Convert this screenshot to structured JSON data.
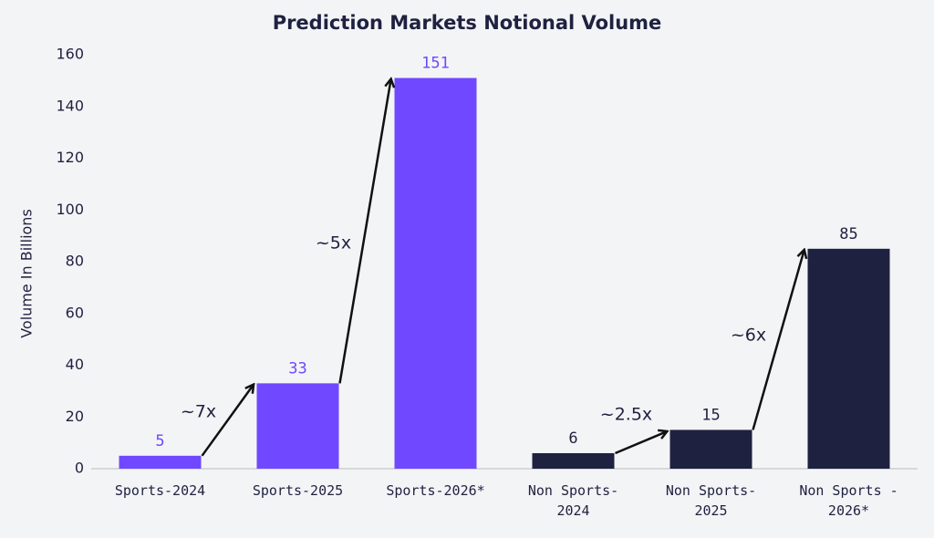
{
  "chart_data": {
    "type": "bar",
    "title": "Prediction Markets Notional Volume",
    "y_label": "Volume In Billions",
    "categories": [
      "Sports-2024",
      "Sports-2025",
      "Sports-2026*",
      "Non Sports-2024",
      "Non Sports-2025",
      "Non Sports - 2026*"
    ],
    "values": [
      5,
      33,
      151,
      6,
      15,
      85
    ],
    "colors": [
      "#7048ff",
      "#7048ff",
      "#7048ff",
      "#1f2140",
      "#1f2140",
      "#1f2140"
    ],
    "ylim": [
      0,
      160
    ],
    "yticks": [
      0,
      20,
      40,
      60,
      80,
      100,
      120,
      140,
      160
    ],
    "grid": false,
    "annotations": [
      "~7x",
      "~5x",
      "~2.5x",
      "~6x"
    ]
  }
}
